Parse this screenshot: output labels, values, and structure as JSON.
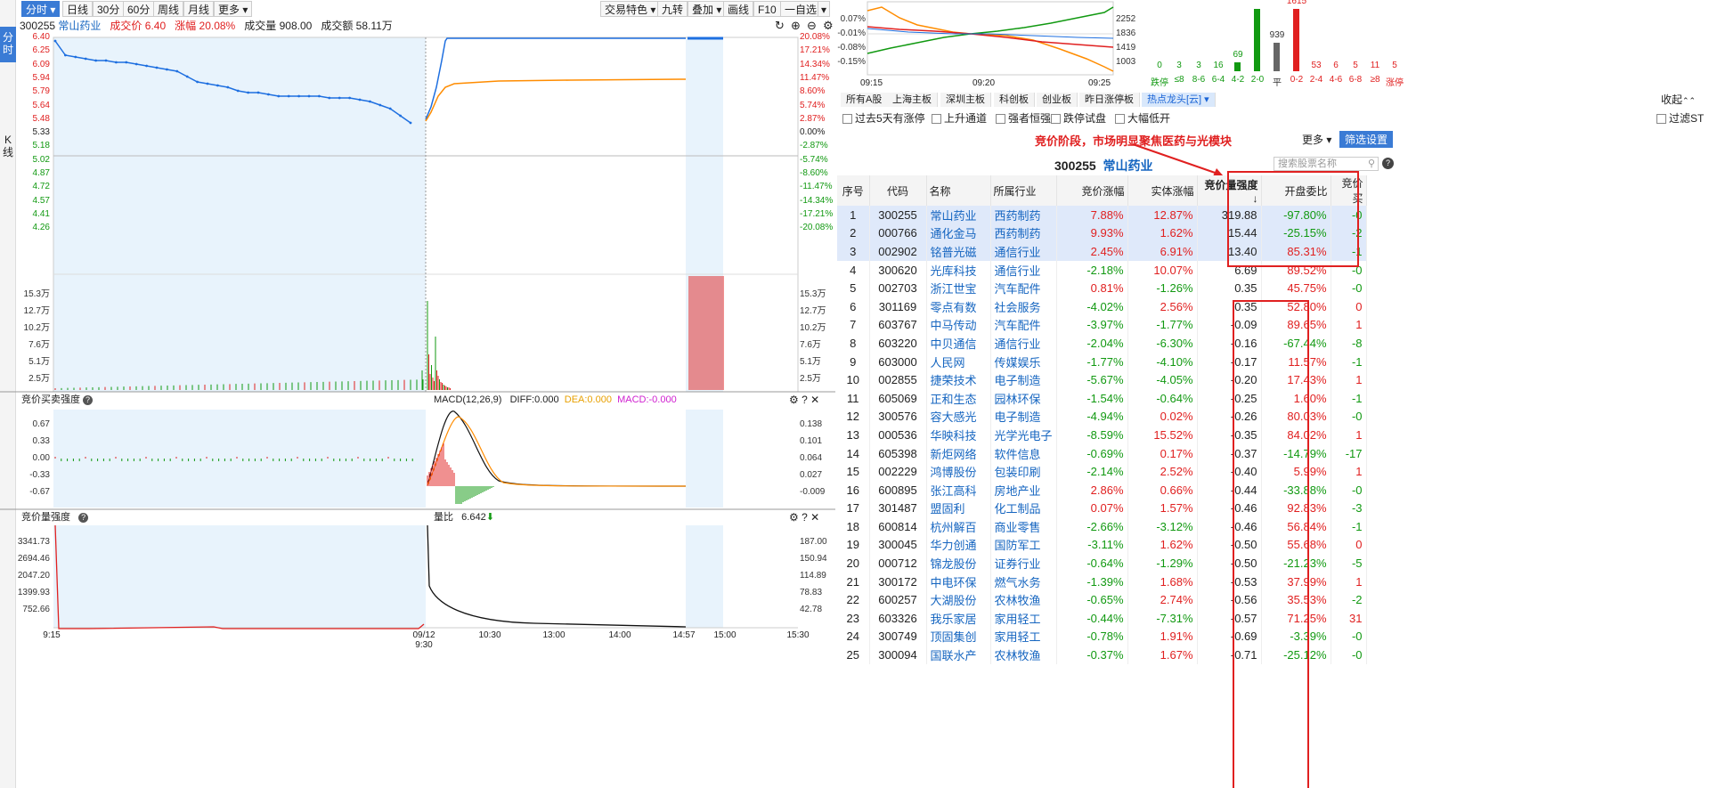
{
  "vtabs": [
    "分时",
    "K线"
  ],
  "toolbar": {
    "left": [
      "分时",
      "日线",
      "30分",
      "60分",
      "周线",
      "月线",
      "更多"
    ],
    "right": [
      "交易特色",
      "九转",
      "叠加",
      "画线",
      "F10",
      "一自选"
    ]
  },
  "stock": {
    "code": "300255",
    "name": "常山药业",
    "price_label": "成交价",
    "price": "6.40",
    "change_label": "涨幅",
    "change": "20.08%",
    "volume_label": "成交量",
    "volume": "908.00",
    "amount_label": "成交额",
    "amount": "58.11万"
  },
  "main_chart": {
    "price_ticks": [
      "6.40",
      "6.25",
      "6.09",
      "5.94",
      "5.79",
      "5.64",
      "5.48",
      "5.33",
      "5.18",
      "5.02",
      "4.87",
      "4.72",
      "4.57",
      "4.41",
      "4.26"
    ],
    "pct_ticks": [
      "20.08%",
      "17.21%",
      "14.34%",
      "11.47%",
      "8.60%",
      "5.74%",
      "2.87%",
      "0.00%",
      "-2.87%",
      "-5.74%",
      "-8.60%",
      "-11.47%",
      "-14.34%",
      "-17.21%",
      "-20.08%"
    ],
    "vol_ticks": [
      "15.3万",
      "12.7万",
      "10.2万",
      "7.6万",
      "5.1万",
      "2.5万"
    ],
    "time_ticks": [
      "9:15",
      "09/12 9:30",
      "10:30",
      "13:00",
      "14:00",
      "14:57",
      "15:00",
      "15:30"
    ]
  },
  "panel2": {
    "title": "竞价买卖强度",
    "left_ticks": [
      "0.67",
      "0.33",
      "0.00",
      "-0.33",
      "-0.67"
    ],
    "right_ticks": [
      "0.138",
      "0.101",
      "0.064",
      "0.027",
      "-0.009"
    ],
    "macd_label": "MACD(12,26,9)",
    "diff_label": "DIFF:0.000",
    "dea_label": "DEA:0.000",
    "macd_val": "MACD:-0.000"
  },
  "panel3": {
    "title": "竞价量强度",
    "left_ticks": [
      "3341.73",
      "2694.46",
      "2047.20",
      "1399.93",
      "752.66"
    ],
    "right_ticks": [
      "187.00",
      "150.94",
      "114.89",
      "78.83",
      "42.78"
    ],
    "ratio_label": "量比",
    "ratio_val": "6.642"
  },
  "mini_chart": {
    "left_ticks": [
      "0.07%",
      "-0.01%",
      "-0.08%",
      "-0.15%"
    ],
    "right_ticks": [
      "2252",
      "1836",
      "1419",
      "1003"
    ],
    "time_ticks": [
      "09:15",
      "09:20",
      "09:25"
    ]
  },
  "distribution": {
    "counts": [
      "0",
      "3",
      "3",
      "16",
      "69",
      "",
      "939",
      "1615",
      "53",
      "6",
      "5",
      "11",
      "5"
    ],
    "labels": [
      "跌停",
      "≤8",
      "8-6",
      "6-4",
      "4-2",
      "2-0",
      "平",
      "0-2",
      "2-4",
      "4-6",
      "6-8",
      "≥8",
      "涨停"
    ]
  },
  "market_tabs": [
    "所有A股",
    "上海主板",
    "深圳主板",
    "科创板",
    "创业板",
    "昨日涨停板",
    "热点龙头[云]"
  ],
  "collapse_label": "收起",
  "filters": [
    "过去5天有涨停",
    "上升通道",
    "强者恒强",
    "跌停试盘",
    "大幅低开"
  ],
  "filter_st": "过滤ST",
  "annotation": "竞价阶段，市场明显聚焦医药与光模块",
  "more_label": "更多",
  "screen_btn": "筛选设置",
  "table_title_code": "300255",
  "table_title_name": "常山药业",
  "search_placeholder": "搜索股票名称",
  "columns": [
    "序号",
    "代码",
    "名称",
    "所属行业",
    "竞价涨幅",
    "实体涨幅",
    "竞价量强度↓",
    "开盘委比",
    "竞价买"
  ],
  "rows": [
    [
      "1",
      "300255",
      "常山药业",
      "西药制药",
      "7.88%",
      "12.87%",
      "319.88",
      "-97.80%",
      "-0"
    ],
    [
      "2",
      "000766",
      "通化金马",
      "西药制药",
      "9.93%",
      "1.62%",
      "15.44",
      "-25.15%",
      "-2"
    ],
    [
      "3",
      "002902",
      "铭普光磁",
      "通信行业",
      "2.45%",
      "6.91%",
      "13.40",
      "85.31%",
      "-1"
    ],
    [
      "4",
      "300620",
      "光库科技",
      "通信行业",
      "-2.18%",
      "10.07%",
      "6.69",
      "89.52%",
      "-0"
    ],
    [
      "5",
      "002703",
      "浙江世宝",
      "汽车配件",
      "0.81%",
      "-1.26%",
      "0.35",
      "45.75%",
      "-0"
    ],
    [
      "6",
      "301169",
      "零点有数",
      "社会服务",
      "-4.02%",
      "2.56%",
      "0.35",
      "52.80%",
      "0"
    ],
    [
      "7",
      "603767",
      "中马传动",
      "汽车配件",
      "-3.97%",
      "-1.77%",
      "-0.09",
      "89.65%",
      "1"
    ],
    [
      "8",
      "603220",
      "中贝通信",
      "通信行业",
      "-2.04%",
      "-6.30%",
      "-0.16",
      "-67.44%",
      "-8"
    ],
    [
      "9",
      "603000",
      "人民网",
      "传媒娱乐",
      "-1.77%",
      "-4.10%",
      "-0.17",
      "11.57%",
      "-1"
    ],
    [
      "10",
      "002855",
      "捷荣技术",
      "电子制造",
      "-5.67%",
      "-4.05%",
      "-0.20",
      "17.43%",
      "1"
    ],
    [
      "11",
      "605069",
      "正和生态",
      "园林环保",
      "-1.54%",
      "-0.64%",
      "-0.25",
      "1.60%",
      "-1"
    ],
    [
      "12",
      "300576",
      "容大感光",
      "电子制造",
      "-4.94%",
      "0.02%",
      "-0.26",
      "80.03%",
      "-0"
    ],
    [
      "13",
      "000536",
      "华映科技",
      "光学光电子",
      "-8.59%",
      "15.52%",
      "-0.35",
      "84.02%",
      "1"
    ],
    [
      "14",
      "605398",
      "新炬网络",
      "软件信息",
      "-0.69%",
      "0.17%",
      "-0.37",
      "-14.79%",
      "-17"
    ],
    [
      "15",
      "002229",
      "鸿博股份",
      "包装印刷",
      "-2.14%",
      "2.52%",
      "-0.40",
      "5.99%",
      "1"
    ],
    [
      "16",
      "600895",
      "张江高科",
      "房地产业",
      "2.86%",
      "0.66%",
      "-0.44",
      "-33.88%",
      "-0"
    ],
    [
      "17",
      "301487",
      "盟固利",
      "化工制品",
      "0.07%",
      "1.57%",
      "-0.46",
      "92.83%",
      "-3"
    ],
    [
      "18",
      "600814",
      "杭州解百",
      "商业零售",
      "-2.66%",
      "-3.12%",
      "-0.46",
      "56.84%",
      "-1"
    ],
    [
      "19",
      "300045",
      "华力创通",
      "国防军工",
      "-3.11%",
      "1.62%",
      "-0.50",
      "55.68%",
      "0"
    ],
    [
      "20",
      "000712",
      "锦龙股份",
      "证券行业",
      "-0.64%",
      "-1.29%",
      "-0.50",
      "-21.23%",
      "-5"
    ],
    [
      "21",
      "300172",
      "中电环保",
      "燃气水务",
      "-1.39%",
      "1.68%",
      "-0.53",
      "37.99%",
      "1"
    ],
    [
      "22",
      "600257",
      "大湖股份",
      "农林牧渔",
      "-0.65%",
      "2.74%",
      "-0.56",
      "35.53%",
      "-2"
    ],
    [
      "23",
      "603326",
      "我乐家居",
      "家用轻工",
      "-0.44%",
      "-7.31%",
      "-0.57",
      "71.25%",
      "31"
    ],
    [
      "24",
      "300749",
      "顶固集创",
      "家用轻工",
      "-0.78%",
      "1.91%",
      "-0.69",
      "-3.39%",
      "-0"
    ],
    [
      "25",
      "300094",
      "国联水产",
      "农林牧渔",
      "-0.37%",
      "1.67%",
      "-0.71",
      "-25.12%",
      "-0"
    ]
  ],
  "colors": {
    "up": "#e02020",
    "down": "#119911",
    "accent": "#3a7bd5",
    "price_line": "#1e6fe0",
    "avg_line": "#ff8c00"
  }
}
